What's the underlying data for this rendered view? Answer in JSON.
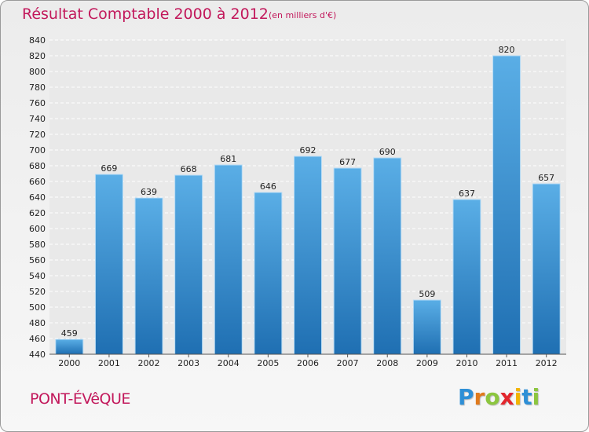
{
  "chart_data": {
    "type": "bar",
    "title": "Résultat Comptable 2000 à 2012",
    "subtitle": "(en milliers d'€)",
    "categories": [
      "2000",
      "2001",
      "2002",
      "2003",
      "2004",
      "2005",
      "2006",
      "2007",
      "2008",
      "2009",
      "2010",
      "2011",
      "2012"
    ],
    "values": [
      459,
      669,
      639,
      668,
      681,
      646,
      692,
      677,
      690,
      509,
      637,
      820,
      657
    ],
    "ylim": [
      440,
      840
    ],
    "ytick_step": 20,
    "xlabel": "",
    "ylabel": "",
    "grid": true,
    "colors": {
      "bar_top": "#5aaee6",
      "bar_bottom": "#1f6fb2",
      "title": "#c2185b"
    }
  },
  "footer": {
    "place": "PONT-ÉVêQUE",
    "brand_letters": [
      "P",
      "r",
      "o",
      "x",
      "i",
      "t",
      "i"
    ],
    "brand_colors": [
      "#2e8fd6",
      "#e07a1c",
      "#8cc63f",
      "#e3262d",
      "#f2b400",
      "#2e8fd6",
      "#8cc63f"
    ]
  }
}
